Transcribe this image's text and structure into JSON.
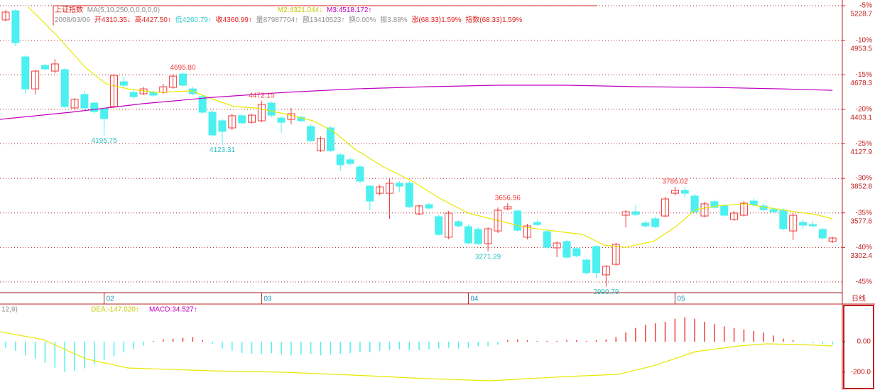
{
  "header": {
    "index_name": "上证指数",
    "ma_params": "MA(5,10,250,0,0,0,0,0)",
    "m2": "M2:4321.044↓",
    "m3": "M3:4518.172↑",
    "date": "2008/03/06",
    "open": "开4310.35↓",
    "high": "高4427.50↑",
    "low": "低4260.79↑",
    "close": "收4360.99↑",
    "volume": "量87987704↑",
    "amount": "额13410523↑",
    "turnover": "换0.00%",
    "amplitude": "振3.88%",
    "change": "涨(68.33)1.59%",
    "index_change": "指数(68.33)1.59%"
  },
  "period_label": "日线",
  "chart_data": [
    {
      "type": "candlestick",
      "up_color": "#f03c3c",
      "down_color": "#4cf0f0",
      "grid": true,
      "grid_color": "#b02020",
      "xlim": [
        -0.58,
        85.0
      ],
      "xticks": [
        {
          "value": 10,
          "label": "02"
        },
        {
          "value": 26,
          "label": "03"
        },
        {
          "value": 47,
          "label": "04"
        },
        {
          "value": 68,
          "label": "05"
        }
      ],
      "ylim": [
        2942,
        5246
      ],
      "yticks": [
        5228.7,
        4953.5,
        4678.3,
        4403.1,
        4127.9,
        3852.8,
        3577.6,
        3302.4
      ],
      "y2lim": [
        -46.55,
        -4.69
      ],
      "y2ticks": [
        {
          "value": -5,
          "label": "-5%"
        },
        {
          "value": -10,
          "label": "-10%"
        },
        {
          "value": -15,
          "label": "-15%"
        },
        {
          "value": -20,
          "label": "-20%"
        },
        {
          "value": -25,
          "label": "-25%"
        },
        {
          "value": -30,
          "label": "-30%"
        },
        {
          "value": -35,
          "label": "-35%"
        },
        {
          "value": -40,
          "label": "-40%"
        },
        {
          "value": -45,
          "label": "-45%"
        }
      ],
      "open": [
        5116,
        5189,
        4821,
        4566,
        4753,
        4708,
        4719,
        4414,
        4521,
        4453,
        4408,
        4425,
        4623,
        4538,
        4527,
        4538,
        4538,
        4578,
        4685,
        4566,
        4504,
        4380,
        4312,
        4255,
        4352,
        4300,
        4312,
        4453,
        4334,
        4323,
        4340,
        4267,
        4074,
        4255,
        4040,
        4001,
        3944,
        3791,
        3734,
        3734,
        3814,
        3814,
        3570,
        3644,
        3548,
        3384,
        3508,
        3468,
        3446,
        3333,
        3434,
        3610,
        3593,
        3384,
        3502,
        3429,
        3299,
        3350,
        3293,
        3202,
        3310,
        3084,
        3168,
        3559,
        3587,
        3497,
        3531,
        3553,
        3734,
        3757,
        3712,
        3553,
        3667,
        3633,
        3525,
        3559,
        3672,
        3633,
        3604,
        3599,
        3434,
        3502,
        3485,
        3446,
        3350
      ],
      "high": [
        5195,
        5200,
        4833,
        4719,
        4765,
        4804,
        4731,
        4493,
        4550,
        4465,
        4425,
        4685,
        4663,
        4555,
        4583,
        4550,
        4606,
        4680,
        4695.8,
        4583,
        4516,
        4397,
        4329,
        4368,
        4368,
        4368,
        4472.15,
        4465,
        4346,
        4414,
        4352,
        4283,
        4187,
        4267,
        4057,
        4017,
        3961,
        3802,
        3802,
        3848,
        3831,
        3831,
        3644,
        3655,
        3565,
        3593,
        3519,
        3485,
        3463,
        3463,
        3621,
        3656.96,
        3604,
        3491,
        3519,
        3446,
        3350,
        3361,
        3304,
        3214,
        3321,
        3163,
        3338,
        3599,
        3644,
        3514,
        3548,
        3706,
        3786.02,
        3780,
        3729,
        3667,
        3684,
        3650,
        3593,
        3672,
        3695,
        3655,
        3621,
        3616,
        3576,
        3525,
        3514,
        3457,
        3389
      ],
      "low": [
        5104,
        4906,
        4527,
        4521,
        4714,
        4691,
        4414,
        4402,
        4397,
        4368,
        4195.75,
        4414,
        4578,
        4487,
        4516,
        4504,
        4527,
        4566,
        4583,
        4516,
        4368,
        4187,
        4123.31,
        4238,
        4283,
        4289,
        4300,
        4340,
        4216,
        4283,
        4300,
        4142,
        4063,
        4063,
        3910,
        3955,
        3814,
        3599,
        3717,
        3531,
        3746,
        3616,
        3559,
        3604,
        3395,
        3367,
        3463,
        3327,
        3321,
        3271.29,
        3417,
        3599,
        3429,
        3367,
        3474,
        3293,
        3225,
        3214,
        3225,
        3089,
        3055,
        2990.79,
        3157,
        3463,
        3553,
        3463,
        3457,
        3542,
        3717,
        3700,
        3576,
        3542,
        3610,
        3548,
        3514,
        3548,
        3633,
        3593,
        3576,
        3440,
        3361,
        3451,
        3463,
        3367,
        3338
      ],
      "close": [
        5178,
        4934,
        4566,
        4708,
        4725,
        4765,
        4425,
        4482,
        4414,
        4385,
        4329,
        4674,
        4595,
        4504,
        4566,
        4516,
        4583,
        4668,
        4595,
        4527,
        4380,
        4199,
        4227,
        4352,
        4295,
        4357,
        4442,
        4357,
        4300,
        4368,
        4312,
        4153,
        4170,
        4074,
        3961,
        3972,
        3831,
        3672,
        3785,
        3814,
        3791,
        3627,
        3633,
        3616,
        3406,
        3576,
        3474,
        3338,
        3333,
        3451,
        3599,
        3627,
        3440,
        3474,
        3485,
        3304,
        3338,
        3225,
        3236,
        3101,
        3101,
        3152,
        3327,
        3587,
        3565,
        3474,
        3468,
        3689,
        3757,
        3734,
        3587,
        3650,
        3621,
        3559,
        3576,
        3655,
        3644,
        3604,
        3587,
        3451,
        3559,
        3480,
        3474,
        3378,
        3378
      ],
      "series": [
        {
          "color": "#e8e800",
          "x": [
            2.3,
            5.2,
            8.1,
            10.2,
            12.4,
            15.3,
            18.9,
            21.1,
            23.2,
            25.4,
            28.3,
            31.2,
            33.3,
            35.5,
            38.4,
            41.3,
            44.2,
            47.0,
            49.9,
            52.8,
            55.7,
            58.6,
            60.8,
            62.9,
            65.8,
            68.0,
            70.1,
            72.3,
            75.2,
            77.3,
            80.2,
            82.3,
            84.0
          ],
          "values": [
            5217,
            4991,
            4736,
            4606,
            4566,
            4538,
            4550,
            4482,
            4425,
            4414,
            4368,
            4312,
            4227,
            4085,
            3944,
            3831,
            3689,
            3576,
            3519,
            3463,
            3434,
            3406,
            3321,
            3304,
            3350,
            3463,
            3604,
            3633,
            3650,
            3621,
            3587,
            3565,
            3531
          ]
        },
        {
          "color": "#c000c0",
          "x": [
            -0.6,
            6.6,
            13.9,
            21.1,
            28.3,
            35.5,
            42.7,
            49.9,
            57.1,
            64.4,
            71.6,
            78.8,
            84.0
          ],
          "values": [
            4323,
            4380,
            4448,
            4499,
            4538,
            4566,
            4583,
            4595,
            4595,
            4583,
            4578,
            4566,
            4555
          ]
        }
      ],
      "annotations": [
        {
          "label": "4195.75",
          "value": 4195.75
        },
        {
          "label": "4695.80",
          "value": 4695.8
        },
        {
          "label": "4123.31",
          "value": 4123.31
        },
        {
          "label": "4472.15",
          "value": 4472.15
        },
        {
          "label": "3271.29",
          "value": 3271.29
        },
        {
          "label": "3656.96",
          "value": 3656.96
        },
        {
          "label": "2990.79",
          "value": 2990.79
        },
        {
          "label": "3786.02",
          "value": 3786.02
        }
      ]
    },
    {
      "type": "bar",
      "params": "12,9)",
      "dea_label": "DEA:-147.020↑",
      "macd_label": "MACD:34.527↑",
      "up_color": "#f03c3c",
      "down_color": "#4cf0f0",
      "xlim": [
        -0.58,
        85.0
      ],
      "ylim": [
        -307,
        237
      ],
      "yticks": [
        {
          "value": 0,
          "label": "0.00"
        },
        {
          "value": -200,
          "label": "-200.0"
        }
      ],
      "values": [
        -40,
        -60,
        -90,
        -110,
        -140,
        -170,
        -200,
        -190,
        -175,
        -150,
        -120,
        -95,
        -70,
        -50,
        -25,
        5,
        15,
        20,
        25,
        30,
        10,
        -15,
        -45,
        -60,
        -75,
        -80,
        -80,
        -75,
        -85,
        -90,
        -85,
        -80,
        -90,
        -85,
        -80,
        -75,
        -70,
        -70,
        -60,
        -55,
        -50,
        -55,
        -55,
        -50,
        -45,
        -40,
        -45,
        -40,
        -30,
        -30,
        -20,
        10,
        15,
        10,
        5,
        5,
        5,
        10,
        10,
        5,
        10,
        15,
        30,
        60,
        90,
        110,
        120,
        130,
        150,
        160,
        150,
        130,
        115,
        100,
        90,
        80,
        70,
        60,
        40,
        20,
        10,
        -5,
        -10,
        -15,
        -20,
        -30
      ],
      "series": [
        {
          "color": "#e8e800",
          "x": [
            -0.6,
            3.8,
            8.1,
            12.4,
            21.1,
            28.3,
            35.5,
            42.7,
            49.2,
            57.1,
            62.2,
            65.8,
            70.1,
            74.5,
            77.3,
            81.0,
            84.0
          ],
          "values": [
            65,
            14,
            -112,
            -172,
            -191,
            -200,
            -219,
            -242,
            -256,
            -228,
            -214,
            -158,
            -65,
            -28,
            -14,
            -19,
            -28
          ]
        }
      ]
    }
  ]
}
